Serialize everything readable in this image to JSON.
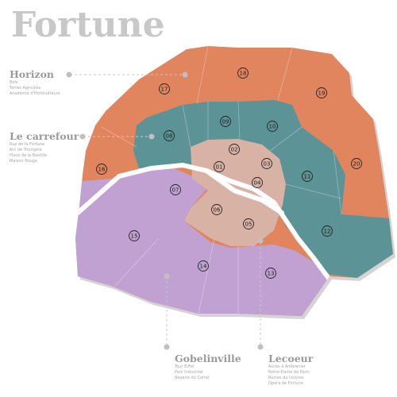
{
  "title": "Fortune",
  "zones": {
    "horizon": {
      "name": "Horizon",
      "items": [
        "Bois",
        "Terres Agricoles",
        "Académie d'Horticulteurs"
      ]
    },
    "carrefour": {
      "name": "Le carrefour",
      "items": [
        "Rue de la Fortune",
        "Arc de Triomphe",
        "Place de la Bastille",
        "Maison Rouge"
      ]
    },
    "gobelinville": {
      "name": "Gobelinville",
      "items": [
        "Tour Eiffel",
        "Parc Industriel",
        "Repaire du Cartel"
      ]
    },
    "lecoeur": {
      "name": "Lecoeur",
      "items": [
        "Accès à Ambrenier",
        "Notre-Dame de Paris",
        "Ruines du louvres",
        "Opéra de Fortune"
      ]
    }
  },
  "colors": {
    "horizon": "#e0855e",
    "carrefour": "#5b9396",
    "gobelinville": "#c0a1d2",
    "lecoeur": "#d9b2a6",
    "river": "#ffffff",
    "shadow": "#d0d0d0"
  },
  "districts": [
    "01",
    "02",
    "03",
    "04",
    "05",
    "06",
    "07",
    "08",
    "09",
    "10",
    "11",
    "12",
    "13",
    "14",
    "15",
    "16",
    "17",
    "18",
    "19",
    "20"
  ]
}
